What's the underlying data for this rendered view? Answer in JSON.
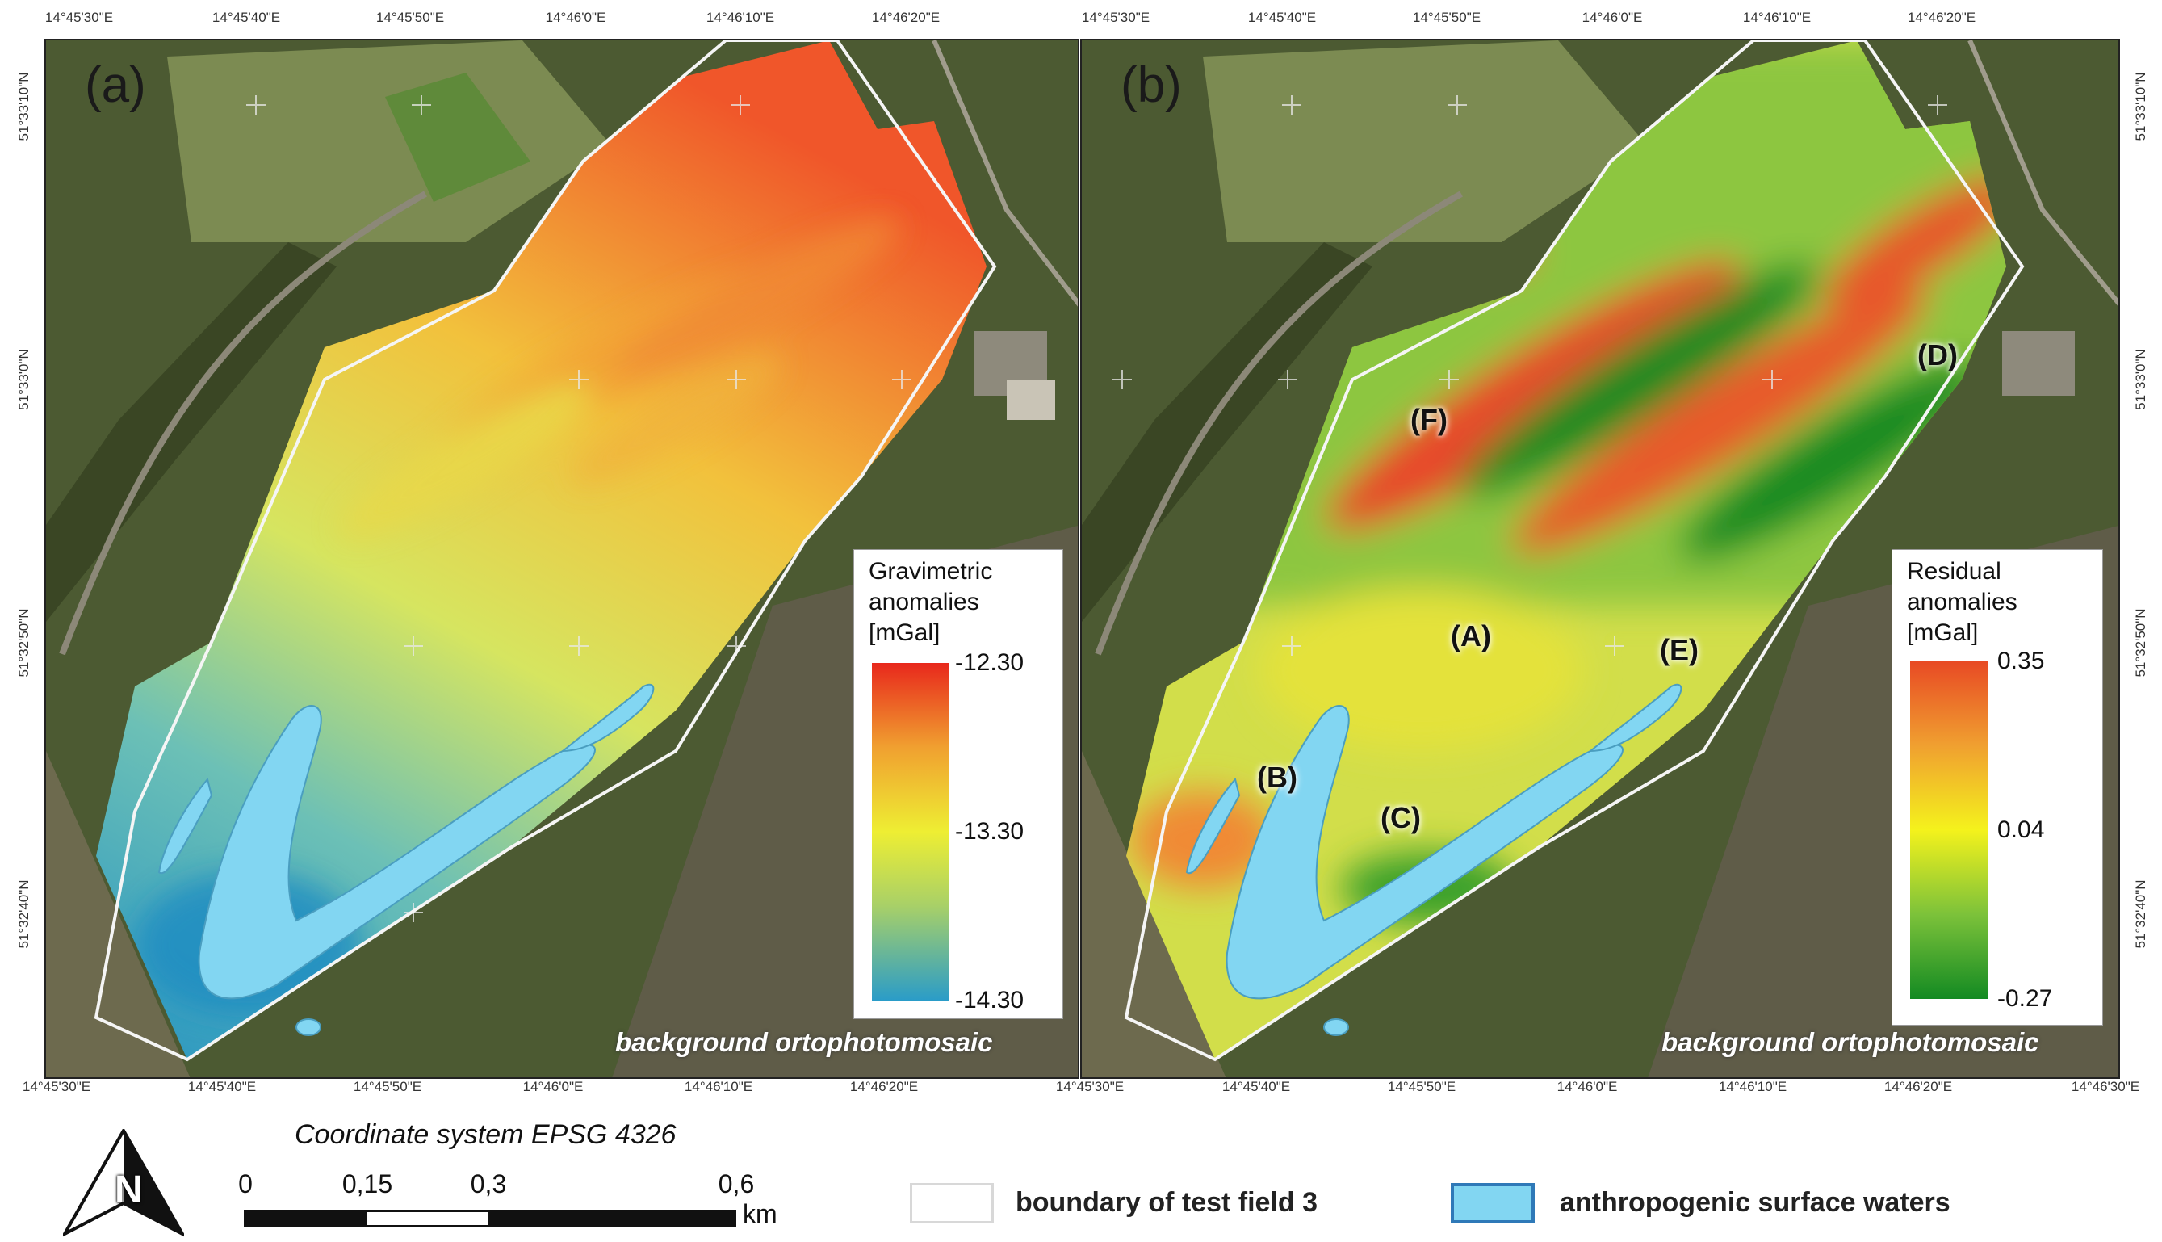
{
  "top_longitudes_left": [
    "14°45'30\"E",
    "14°45'40\"E",
    "14°45'50\"E",
    "14°46'0\"E",
    "14°46'10\"E",
    "14°46'20\"E"
  ],
  "bottom_longitudes_left": [
    "14°45'30\"E",
    "14°45'40\"E",
    "14°45'50\"E",
    "14°46'0\"E",
    "14°46'10\"E",
    "14°46'20\"E"
  ],
  "top_longitudes_right": [
    "14°45'30\"E",
    "14°45'40\"E",
    "14°45'50\"E",
    "14°46'0\"E",
    "14°46'10\"E",
    "14°46'20\"E"
  ],
  "bottom_longitudes_right": [
    "14°45'30\"E",
    "14°45'40\"E",
    "14°45'50\"E",
    "14°46'0\"E",
    "14°46'10\"E",
    "14°46'20\"E",
    "14°46'30\"E"
  ],
  "latitudes": [
    "51°33'10\"N",
    "51°33'0\"N",
    "51°32'50\"N",
    "51°32'40\"N"
  ],
  "panel_a": {
    "letter": "(a)",
    "legend_title": [
      "Gravimetric",
      "anomalies",
      "[mGal]"
    ],
    "colorbar_ticks": [
      "-12.30",
      "-13.30",
      "-14.30"
    ],
    "colorbar_colors": [
      "#e8281c",
      "#f0a030",
      "#eeee33",
      "#a8d068",
      "#2a9cc8"
    ],
    "background_note": "background ortophotomosaic"
  },
  "panel_b": {
    "letter": "(b)",
    "legend_title": [
      "Residual",
      "anomalies",
      "[mGal]"
    ],
    "colorbar_ticks": [
      "0.35",
      "0.04",
      "-0.27"
    ],
    "colorbar_colors": [
      "#e84a24",
      "#f0a030",
      "#f4f21c",
      "#7cc23a",
      "#138a22"
    ],
    "background_note": "background ortophotomosaic",
    "zone_labels": [
      "(A)",
      "(B)",
      "(C)",
      "(D)",
      "(E)",
      "(F)"
    ]
  },
  "coordinate_system": "Coordinate system EPSG 4326",
  "scale_bar": {
    "labels": [
      "0",
      "0,15",
      "0,3",
      "0,6"
    ],
    "unit": "km"
  },
  "north_arrow_letter": "N",
  "legend": {
    "boundary_label": "boundary of test field 3",
    "water_label": "anthropogenic surface waters",
    "boundary_color": "#ffffff",
    "water_color": "#82d6f2"
  }
}
